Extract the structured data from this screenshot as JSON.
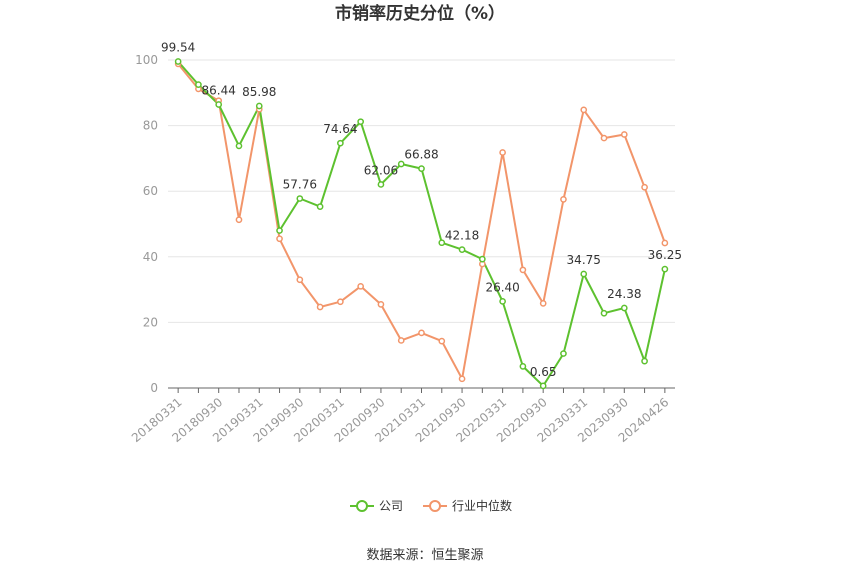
{
  "chart_data": {
    "type": "line",
    "title": "市销率历史分位（%）",
    "source": "数据来源：恒生聚源",
    "ylim": [
      0,
      100
    ],
    "yticks": [
      0,
      20,
      40,
      60,
      80,
      100
    ],
    "x": [
      "20180331",
      "20180630",
      "20180930",
      "20181231",
      "20190331",
      "20190630",
      "20190930",
      "20191231",
      "20200331",
      "20200630",
      "20200930",
      "20201231",
      "20210331",
      "20210630",
      "20210930",
      "20211231",
      "20220331",
      "20220630",
      "20220930",
      "20221231",
      "20230331",
      "20230630",
      "20230930",
      "20231231",
      "20240426"
    ],
    "xtick_labels": [
      "20180331",
      "20180930",
      "20190331",
      "20190930",
      "20200331",
      "20200930",
      "20210331",
      "20210930",
      "20220331",
      "20220930",
      "20230331",
      "20230930",
      "20240426"
    ],
    "grid": true,
    "legend_position": "bottom",
    "series": [
      {
        "name": "公司",
        "color": "#5dc12f",
        "values": [
          99.54,
          92.5,
          86.44,
          73.8,
          85.98,
          48.0,
          57.76,
          55.3,
          74.64,
          81.2,
          62.06,
          68.3,
          66.88,
          44.3,
          42.18,
          39.3,
          26.4,
          6.6,
          0.65,
          10.5,
          34.75,
          22.8,
          24.38,
          8.2,
          36.25
        ],
        "labels": {
          "0": "99.54",
          "2": "86.44",
          "4": "85.98",
          "6": "57.76",
          "8": "74.64",
          "10": "62.06",
          "12": "66.88",
          "14": "42.18",
          "16": "26.40",
          "18": "0.65",
          "20": "34.75",
          "22": "24.38",
          "24": "36.25"
        }
      },
      {
        "name": "行业中位数",
        "color": "#f2956a",
        "values": [
          98.8,
          91.2,
          87.6,
          51.3,
          85.0,
          45.5,
          33.0,
          24.7,
          26.3,
          31.0,
          25.5,
          14.5,
          16.8,
          14.3,
          2.8,
          37.8,
          71.8,
          36.0,
          25.8,
          57.5,
          84.8,
          76.2,
          77.3,
          61.2,
          44.2
        ]
      }
    ]
  }
}
